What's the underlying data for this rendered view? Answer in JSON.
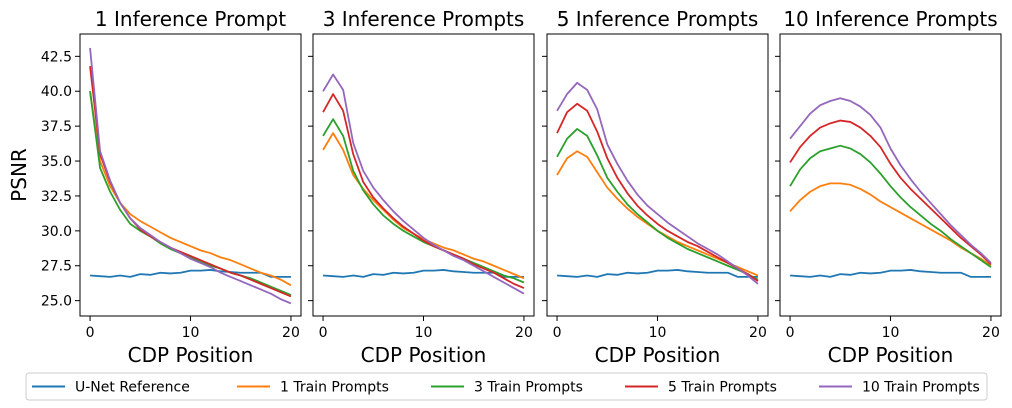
{
  "chart_data": {
    "type": "line",
    "layout": "1x4 subplots, shared y-axis",
    "ylabel": "PSNR",
    "ylim": [
      23.9,
      44.1
    ],
    "yticks": [
      "25.0",
      "27.5",
      "30.0",
      "32.5",
      "35.0",
      "37.5",
      "40.0",
      "42.5"
    ],
    "ytick_values": [
      25.0,
      27.5,
      30.0,
      32.5,
      35.0,
      37.5,
      40.0,
      42.5
    ],
    "xlim": [
      -1,
      21
    ],
    "xticks": [
      0,
      10,
      20
    ],
    "grid": false,
    "legend": {
      "placement": "bottom-center",
      "entries": [
        "U-Net Reference",
        "1 Train Prompts",
        "3 Train Prompts",
        "5 Train Prompts",
        "10 Train Prompts"
      ]
    },
    "series_colors": [
      "#1f77b4",
      "#ff7f0e",
      "#2ca02c",
      "#d62728",
      "#9467bd"
    ],
    "x": [
      0,
      1,
      2,
      3,
      4,
      5,
      6,
      7,
      8,
      9,
      10,
      11,
      12,
      13,
      14,
      15,
      16,
      17,
      18,
      19,
      20
    ],
    "panels": [
      {
        "title": "1 Inference Prompt",
        "xlabel": "CDP Position",
        "series": [
          {
            "name": "U-Net Reference",
            "values": [
              26.8,
              26.75,
              26.7,
              26.8,
              26.7,
              26.9,
              26.85,
              27.0,
              26.95,
              27.0,
              27.15,
              27.15,
              27.2,
              27.1,
              27.05,
              27.0,
              27.0,
              27.0,
              26.7,
              26.7,
              26.7
            ]
          },
          {
            "name": "1 Train Prompts",
            "values": [
              40.0,
              35.0,
              33.2,
              32.0,
              31.2,
              30.7,
              30.3,
              29.9,
              29.5,
              29.2,
              28.9,
              28.6,
              28.4,
              28.1,
              27.9,
              27.6,
              27.3,
              27.0,
              26.8,
              26.5,
              26.1
            ]
          },
          {
            "name": "3 Train Prompts",
            "values": [
              40.0,
              34.5,
              32.8,
              31.5,
              30.5,
              30.0,
              29.6,
              29.1,
              28.7,
              28.4,
              28.1,
              27.8,
              27.5,
              27.3,
              27.0,
              26.8,
              26.6,
              26.3,
              26.0,
              25.7,
              25.4
            ]
          },
          {
            "name": "5 Train Prompts",
            "values": [
              41.8,
              35.5,
              33.5,
              32.0,
              30.9,
              30.1,
              29.6,
              29.2,
              28.8,
              28.5,
              28.2,
              27.9,
              27.6,
              27.3,
              27.0,
              26.8,
              26.5,
              26.2,
              25.9,
              25.6,
              25.3
            ]
          },
          {
            "name": "10 Train Prompts",
            "values": [
              43.1,
              35.7,
              33.6,
              32.0,
              30.9,
              30.2,
              29.7,
              29.2,
              28.8,
              28.4,
              28.0,
              27.7,
              27.4,
              27.0,
              26.7,
              26.4,
              26.1,
              25.8,
              25.5,
              25.1,
              24.8
            ]
          }
        ]
      },
      {
        "title": "3 Inference Prompts",
        "xlabel": "CDP Position",
        "series": [
          {
            "name": "U-Net Reference",
            "values": [
              26.8,
              26.75,
              26.7,
              26.8,
              26.7,
              26.9,
              26.85,
              27.0,
              26.95,
              27.0,
              27.15,
              27.15,
              27.2,
              27.1,
              27.05,
              27.0,
              27.0,
              27.0,
              26.7,
              26.7,
              26.7
            ]
          },
          {
            "name": "1 Train Prompts",
            "values": [
              35.8,
              37.0,
              35.8,
              34.0,
              33.0,
              32.2,
              31.5,
              30.8,
              30.2,
              29.8,
              29.4,
              29.1,
              28.8,
              28.6,
              28.3,
              28.0,
              27.8,
              27.5,
              27.2,
              26.9,
              26.6
            ]
          },
          {
            "name": "3 Train Prompts",
            "values": [
              36.8,
              38.0,
              36.8,
              34.3,
              32.9,
              31.9,
              31.1,
              30.5,
              30.0,
              29.6,
              29.2,
              28.9,
              28.6,
              28.3,
              28.0,
              27.7,
              27.4,
              27.1,
              26.8,
              26.6,
              26.3
            ]
          },
          {
            "name": "5 Train Prompts",
            "values": [
              38.5,
              39.8,
              38.6,
              35.5,
              33.5,
              32.4,
              31.6,
              30.9,
              30.3,
              29.8,
              29.3,
              28.9,
              28.6,
              28.3,
              28.0,
              27.6,
              27.3,
              27.0,
              26.6,
              26.2,
              25.9
            ]
          },
          {
            "name": "10 Train Prompts",
            "values": [
              40.0,
              41.2,
              40.1,
              36.3,
              34.3,
              33.1,
              32.2,
              31.4,
              30.7,
              30.1,
              29.5,
              29.0,
              28.6,
              28.2,
              27.9,
              27.5,
              27.1,
              26.7,
              26.3,
              25.9,
              25.5
            ]
          }
        ]
      },
      {
        "title": "5 Inference Prompts",
        "xlabel": "CDP Position",
        "series": [
          {
            "name": "U-Net Reference",
            "values": [
              26.8,
              26.75,
              26.7,
              26.8,
              26.7,
              26.9,
              26.85,
              27.0,
              26.95,
              27.0,
              27.15,
              27.15,
              27.2,
              27.1,
              27.05,
              27.0,
              27.0,
              27.0,
              26.7,
              26.7,
              26.7
            ]
          },
          {
            "name": "1 Train Prompts",
            "values": [
              34.0,
              35.2,
              35.7,
              35.3,
              34.2,
              33.1,
              32.3,
              31.6,
              31.0,
              30.5,
              30.0,
              29.6,
              29.2,
              28.9,
              28.6,
              28.3,
              28.0,
              27.7,
              27.4,
              27.1,
              26.8
            ]
          },
          {
            "name": "3 Train Prompts",
            "values": [
              35.3,
              36.6,
              37.3,
              36.8,
              35.4,
              33.8,
              32.8,
              31.9,
              31.2,
              30.6,
              30.0,
              29.5,
              29.1,
              28.7,
              28.4,
              28.1,
              27.8,
              27.5,
              27.2,
              26.9,
              26.5
            ]
          },
          {
            "name": "5 Train Prompts",
            "values": [
              37.0,
              38.5,
              39.1,
              38.6,
              37.1,
              35.2,
              33.8,
              32.7,
              31.8,
              31.1,
              30.5,
              30.0,
              29.6,
              29.2,
              28.9,
              28.5,
              28.1,
              27.7,
              27.3,
              26.9,
              26.4
            ]
          },
          {
            "name": "10 Train Prompts",
            "values": [
              38.6,
              39.8,
              40.6,
              40.1,
              38.7,
              36.2,
              34.8,
              33.6,
              32.6,
              31.8,
              31.2,
              30.6,
              30.1,
              29.6,
              29.1,
              28.7,
              28.3,
              27.8,
              27.3,
              26.8,
              26.2
            ]
          }
        ]
      },
      {
        "title": "10 Inference Prompts",
        "xlabel": "CDP Position",
        "series": [
          {
            "name": "U-Net Reference",
            "values": [
              26.8,
              26.75,
              26.7,
              26.8,
              26.7,
              26.9,
              26.85,
              27.0,
              26.95,
              27.0,
              27.15,
              27.15,
              27.2,
              27.1,
              27.05,
              27.0,
              27.0,
              27.0,
              26.7,
              26.7,
              26.7
            ]
          },
          {
            "name": "1 Train Prompts",
            "values": [
              31.4,
              32.2,
              32.8,
              33.2,
              33.4,
              33.4,
              33.3,
              33.0,
              32.6,
              32.1,
              31.7,
              31.3,
              30.9,
              30.5,
              30.1,
              29.7,
              29.3,
              28.8,
              28.4,
              28.0,
              27.5
            ]
          },
          {
            "name": "3 Train Prompts",
            "values": [
              33.2,
              34.4,
              35.2,
              35.7,
              35.9,
              36.1,
              35.9,
              35.5,
              34.9,
              34.1,
              33.2,
              32.4,
              31.7,
              31.1,
              30.5,
              30.0,
              29.4,
              28.9,
              28.4,
              27.9,
              27.4
            ]
          },
          {
            "name": "5 Train Prompts",
            "values": [
              34.9,
              36.0,
              36.8,
              37.4,
              37.7,
              37.9,
              37.8,
              37.4,
              36.8,
              36.0,
              34.8,
              33.8,
              33.0,
              32.3,
              31.6,
              30.9,
              30.2,
              29.5,
              28.9,
              28.3,
              27.6
            ]
          },
          {
            "name": "10 Train Prompts",
            "values": [
              36.6,
              37.5,
              38.4,
              39.0,
              39.3,
              39.5,
              39.3,
              38.9,
              38.3,
              37.4,
              35.9,
              34.7,
              33.7,
              32.8,
              32.0,
              31.2,
              30.4,
              29.7,
              29.0,
              28.4,
              27.7
            ]
          }
        ]
      }
    ]
  }
}
